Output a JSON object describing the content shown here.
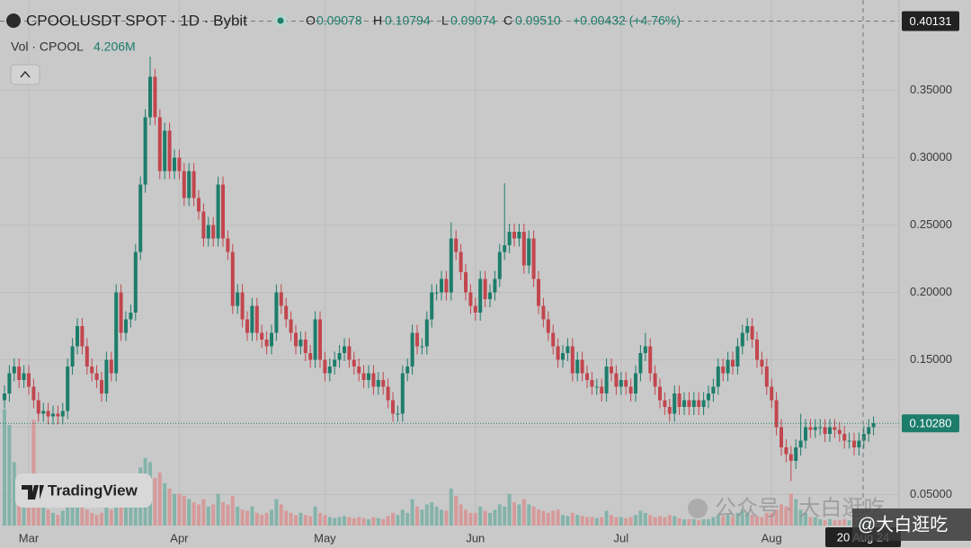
{
  "header": {
    "symbol": "CPOOLUSDT SPOT · 1D · Bybit",
    "ohlc": [
      {
        "label": "O",
        "value": "0.09078"
      },
      {
        "label": "H",
        "value": "0.10794"
      },
      {
        "label": "L",
        "value": "0.09074"
      },
      {
        "label": "C",
        "value": "0.09510"
      }
    ],
    "change": "+0.00432 (+4.76%)"
  },
  "watermarks": {
    "logo": "TradingView",
    "wechat": "公众号 · 大白逛吃",
    "handle": "@大白逛吃"
  },
  "chart_data": {
    "type": "candlestick",
    "categories": [
      null,
      null,
      null,
      null,
      null,
      "Mar",
      null,
      null,
      null,
      null,
      null,
      null,
      null,
      null,
      null,
      null,
      null,
      null,
      null,
      null,
      null,
      null,
      null,
      null,
      null,
      null,
      null,
      null,
      null,
      null,
      null,
      null,
      null,
      null,
      null,
      null,
      "Apr",
      null,
      null,
      null,
      null,
      null,
      null,
      null,
      null,
      null,
      null,
      null,
      null,
      null,
      null,
      null,
      null,
      null,
      null,
      null,
      null,
      null,
      null,
      null,
      null,
      null,
      null,
      null,
      null,
      null,
      "May",
      null,
      null,
      null,
      null,
      null,
      null,
      null,
      null,
      null,
      null,
      null,
      null,
      null,
      null,
      null,
      null,
      null,
      null,
      null,
      null,
      null,
      null,
      null,
      null,
      null,
      null,
      null,
      null,
      null,
      null,
      "Jun",
      null,
      null,
      null,
      null,
      null,
      null,
      null,
      null,
      null,
      null,
      null,
      null,
      null,
      null,
      null,
      null,
      null,
      null,
      null,
      null,
      null,
      null,
      null,
      null,
      null,
      null,
      null,
      null,
      null,
      "Jul",
      null,
      null,
      null,
      null,
      null,
      null,
      null,
      null,
      null,
      null,
      null,
      null,
      null,
      null,
      null,
      null,
      null,
      null,
      null,
      null,
      null,
      null,
      null,
      null,
      null,
      null,
      null,
      null,
      null,
      null,
      "Aug",
      null,
      null,
      null,
      null,
      null,
      null,
      null,
      null,
      null,
      null,
      null,
      null,
      null,
      null,
      null,
      null,
      null,
      null,
      null,
      null,
      null
    ],
    "open": [
      0.12,
      0.125,
      0.14,
      0.145,
      0.135,
      0.14,
      0.13,
      0.12,
      0.11,
      0.112,
      0.108,
      0.11,
      0.108,
      0.112,
      0.145,
      0.16,
      0.175,
      0.16,
      0.145,
      0.14,
      0.135,
      0.125,
      0.15,
      0.14,
      0.2,
      0.17,
      0.18,
      0.185,
      0.23,
      0.28,
      0.33,
      0.36,
      0.33,
      0.29,
      0.32,
      0.29,
      0.3,
      0.29,
      0.27,
      0.29,
      0.27,
      0.26,
      0.24,
      0.25,
      0.24,
      0.28,
      0.24,
      0.23,
      0.19,
      0.2,
      0.18,
      0.17,
      0.19,
      0.17,
      0.165,
      0.16,
      0.17,
      0.2,
      0.19,
      0.18,
      0.17,
      0.16,
      0.165,
      0.155,
      0.15,
      0.18,
      0.15,
      0.14,
      0.145,
      0.15,
      0.155,
      0.16,
      0.15,
      0.145,
      0.14,
      0.135,
      0.14,
      0.13,
      0.135,
      0.13,
      0.12,
      0.11,
      0.11,
      0.14,
      0.145,
      0.17,
      0.16,
      0.16,
      0.18,
      0.2,
      0.2,
      0.21,
      0.2,
      0.24,
      0.23,
      0.215,
      0.2,
      0.19,
      0.185,
      0.21,
      0.195,
      0.2,
      0.21,
      0.23,
      0.235,
      0.245,
      0.24,
      0.245,
      0.22,
      0.24,
      0.21,
      0.19,
      0.18,
      0.17,
      0.16,
      0.15,
      0.155,
      0.16,
      0.14,
      0.15,
      0.14,
      0.135,
      0.13,
      0.13,
      0.125,
      0.145,
      0.14,
      0.13,
      0.135,
      0.13,
      0.125,
      0.14,
      0.155,
      0.16,
      0.14,
      0.13,
      0.12,
      0.115,
      0.11,
      0.125,
      0.115,
      0.12,
      0.115,
      0.12,
      0.115,
      0.12,
      0.125,
      0.13,
      0.145,
      0.14,
      0.15,
      0.145,
      0.16,
      0.17,
      0.175,
      0.165,
      0.15,
      0.145,
      0.13,
      0.12,
      0.1,
      0.085,
      0.08,
      0.075,
      0.085,
      0.09,
      0.1,
      0.098,
      0.1,
      0.1,
      0.095,
      0.1,
      0.098,
      0.095,
      0.09,
      0.09,
      0.085,
      0.09,
      0.095,
      0.1
    ],
    "high": [
      0.131,
      0.146,
      0.151,
      0.151,
      0.146,
      0.146,
      0.136,
      0.126,
      0.118,
      0.118,
      0.116,
      0.116,
      0.118,
      0.151,
      0.166,
      0.181,
      0.181,
      0.166,
      0.151,
      0.146,
      0.141,
      0.156,
      0.156,
      0.206,
      0.206,
      0.186,
      0.191,
      0.236,
      0.286,
      0.336,
      0.375,
      0.366,
      0.336,
      0.326,
      0.326,
      0.306,
      0.306,
      0.296,
      0.296,
      0.296,
      0.276,
      0.266,
      0.256,
      0.256,
      0.286,
      0.286,
      0.246,
      0.236,
      0.206,
      0.206,
      0.186,
      0.196,
      0.196,
      0.176,
      0.171,
      0.176,
      0.206,
      0.206,
      0.196,
      0.186,
      0.176,
      0.171,
      0.171,
      0.161,
      0.186,
      0.186,
      0.156,
      0.151,
      0.156,
      0.161,
      0.166,
      0.166,
      0.156,
      0.151,
      0.146,
      0.146,
      0.146,
      0.141,
      0.141,
      0.136,
      0.126,
      0.116,
      0.146,
      0.151,
      0.176,
      0.176,
      0.166,
      0.186,
      0.206,
      0.206,
      0.216,
      0.216,
      0.252,
      0.246,
      0.236,
      0.221,
      0.206,
      0.196,
      0.216,
      0.216,
      0.206,
      0.216,
      0.236,
      0.281,
      0.251,
      0.251,
      0.251,
      0.251,
      0.246,
      0.246,
      0.216,
      0.196,
      0.186,
      0.176,
      0.166,
      0.161,
      0.166,
      0.166,
      0.156,
      0.156,
      0.146,
      0.141,
      0.136,
      0.136,
      0.151,
      0.151,
      0.146,
      0.141,
      0.141,
      0.136,
      0.146,
      0.161,
      0.17,
      0.166,
      0.146,
      0.136,
      0.126,
      0.121,
      0.131,
      0.131,
      0.126,
      0.126,
      0.126,
      0.126,
      0.126,
      0.131,
      0.136,
      0.151,
      0.151,
      0.156,
      0.156,
      0.166,
      0.176,
      0.181,
      0.181,
      0.171,
      0.156,
      0.151,
      0.136,
      0.126,
      0.106,
      0.091,
      0.086,
      0.091,
      0.11,
      0.106,
      0.106,
      0.106,
      0.106,
      0.106,
      0.106,
      0.106,
      0.104,
      0.101,
      0.096,
      0.096,
      0.096,
      0.101,
      0.106,
      0.108
    ],
    "low": [
      0.114,
      0.119,
      0.134,
      0.129,
      0.129,
      0.124,
      0.114,
      0.104,
      0.104,
      0.102,
      0.102,
      0.102,
      0.102,
      0.106,
      0.139,
      0.154,
      0.154,
      0.139,
      0.134,
      0.129,
      0.119,
      0.119,
      0.134,
      0.134,
      0.164,
      0.164,
      0.174,
      0.179,
      0.224,
      0.274,
      0.324,
      0.324,
      0.284,
      0.284,
      0.284,
      0.284,
      0.284,
      0.264,
      0.264,
      0.264,
      0.254,
      0.234,
      0.234,
      0.234,
      0.234,
      0.234,
      0.224,
      0.184,
      0.184,
      0.174,
      0.164,
      0.164,
      0.164,
      0.159,
      0.154,
      0.154,
      0.164,
      0.184,
      0.174,
      0.164,
      0.154,
      0.154,
      0.149,
      0.144,
      0.144,
      0.144,
      0.134,
      0.134,
      0.139,
      0.144,
      0.149,
      0.144,
      0.139,
      0.134,
      0.129,
      0.129,
      0.124,
      0.124,
      0.124,
      0.114,
      0.104,
      0.104,
      0.104,
      0.134,
      0.139,
      0.154,
      0.154,
      0.154,
      0.174,
      0.194,
      0.194,
      0.194,
      0.194,
      0.224,
      0.209,
      0.194,
      0.184,
      0.179,
      0.179,
      0.189,
      0.189,
      0.194,
      0.204,
      0.224,
      0.229,
      0.234,
      0.234,
      0.214,
      0.214,
      0.204,
      0.184,
      0.174,
      0.164,
      0.154,
      0.144,
      0.144,
      0.149,
      0.134,
      0.134,
      0.134,
      0.129,
      0.124,
      0.124,
      0.119,
      0.119,
      0.134,
      0.124,
      0.124,
      0.124,
      0.119,
      0.119,
      0.134,
      0.149,
      0.134,
      0.124,
      0.114,
      0.109,
      0.104,
      0.104,
      0.109,
      0.109,
      0.109,
      0.109,
      0.109,
      0.109,
      0.114,
      0.119,
      0.124,
      0.134,
      0.134,
      0.139,
      0.139,
      0.154,
      0.164,
      0.159,
      0.144,
      0.139,
      0.124,
      0.114,
      0.094,
      0.079,
      0.074,
      0.06,
      0.069,
      0.079,
      0.084,
      0.092,
      0.092,
      0.094,
      0.089,
      0.089,
      0.092,
      0.089,
      0.084,
      0.084,
      0.079,
      0.079,
      0.084,
      0.089,
      0.094
    ],
    "close": [
      0.125,
      0.14,
      0.145,
      0.135,
      0.14,
      0.13,
      0.12,
      0.11,
      0.112,
      0.108,
      0.11,
      0.108,
      0.112,
      0.145,
      0.16,
      0.175,
      0.16,
      0.145,
      0.14,
      0.135,
      0.125,
      0.15,
      0.14,
      0.2,
      0.17,
      0.18,
      0.185,
      0.23,
      0.28,
      0.33,
      0.36,
      0.33,
      0.29,
      0.32,
      0.29,
      0.3,
      0.29,
      0.27,
      0.29,
      0.27,
      0.26,
      0.24,
      0.25,
      0.24,
      0.28,
      0.24,
      0.23,
      0.19,
      0.2,
      0.18,
      0.17,
      0.19,
      0.17,
      0.165,
      0.16,
      0.17,
      0.2,
      0.19,
      0.18,
      0.17,
      0.16,
      0.165,
      0.155,
      0.15,
      0.18,
      0.15,
      0.14,
      0.145,
      0.15,
      0.155,
      0.16,
      0.15,
      0.145,
      0.14,
      0.135,
      0.14,
      0.13,
      0.135,
      0.13,
      0.12,
      0.11,
      0.11,
      0.14,
      0.145,
      0.17,
      0.16,
      0.16,
      0.18,
      0.2,
      0.2,
      0.21,
      0.2,
      0.24,
      0.23,
      0.215,
      0.2,
      0.19,
      0.185,
      0.21,
      0.195,
      0.2,
      0.21,
      0.23,
      0.235,
      0.245,
      0.24,
      0.245,
      0.22,
      0.24,
      0.21,
      0.19,
      0.18,
      0.17,
      0.16,
      0.15,
      0.155,
      0.16,
      0.14,
      0.15,
      0.14,
      0.135,
      0.13,
      0.13,
      0.125,
      0.145,
      0.14,
      0.13,
      0.135,
      0.13,
      0.125,
      0.14,
      0.155,
      0.16,
      0.14,
      0.13,
      0.12,
      0.115,
      0.11,
      0.125,
      0.115,
      0.12,
      0.115,
      0.12,
      0.115,
      0.12,
      0.125,
      0.13,
      0.145,
      0.14,
      0.15,
      0.145,
      0.16,
      0.17,
      0.175,
      0.165,
      0.15,
      0.145,
      0.13,
      0.12,
      0.1,
      0.085,
      0.08,
      0.075,
      0.085,
      0.09,
      0.1,
      0.098,
      0.1,
      0.1,
      0.095,
      0.1,
      0.098,
      0.095,
      0.09,
      0.09,
      0.085,
      0.09,
      0.095,
      0.1,
      0.103
    ],
    "volume": {
      "name": "Vol · CPOOL",
      "axis": "y2",
      "value_label": "4.206M",
      "values": [
        110,
        95,
        60,
        45,
        40,
        30,
        100,
        25,
        18,
        15,
        12,
        10,
        14,
        30,
        28,
        25,
        20,
        15,
        12,
        10,
        12,
        20,
        15,
        35,
        25,
        20,
        25,
        45,
        55,
        64,
        60,
        45,
        50,
        40,
        35,
        30,
        30,
        28,
        25,
        22,
        20,
        25,
        18,
        20,
        30,
        22,
        20,
        28,
        18,
        15,
        14,
        18,
        12,
        10,
        12,
        15,
        25,
        20,
        14,
        12,
        10,
        12,
        10,
        9,
        18,
        12,
        10,
        8,
        7,
        8,
        9,
        8,
        7,
        8,
        7,
        6,
        8,
        7,
        6,
        9,
        12,
        10,
        15,
        12,
        25,
        18,
        15,
        20,
        22,
        18,
        15,
        14,
        35,
        28,
        20,
        15,
        12,
        12,
        18,
        14,
        12,
        15,
        20,
        18,
        30,
        22,
        20,
        25,
        20,
        18,
        15,
        14,
        12,
        14,
        15,
        10,
        9,
        12,
        10,
        9,
        8,
        8,
        7,
        8,
        14,
        10,
        8,
        8,
        7,
        8,
        10,
        14,
        12,
        10,
        8,
        9,
        8,
        10,
        9,
        7,
        6,
        6,
        6,
        5,
        6,
        6,
        8,
        10,
        9,
        10,
        8,
        12,
        14,
        12,
        10,
        9,
        8,
        12,
        12,
        15,
        20,
        18,
        30,
        25,
        15,
        12,
        8,
        8,
        6,
        5,
        6,
        5,
        5,
        6,
        5,
        6,
        5,
        6,
        6,
        4.206
      ]
    },
    "up_color": "#1d7d6b",
    "down_color": "#c2464e",
    "volume_up_color": "#84b3a9",
    "volume_down_color": "#d69a9a",
    "ylim": [
      0.027,
      0.417
    ],
    "y2lim": [
      0,
      497
    ],
    "yticks": [
      {
        "value": 0.05,
        "label": "0.05000"
      },
      {
        "value": 0.1,
        "label": "0.10000"
      },
      {
        "value": 0.15,
        "label": "0.15000"
      },
      {
        "value": 0.2,
        "label": "0.20000"
      },
      {
        "value": 0.25,
        "label": "0.25000"
      },
      {
        "value": 0.3,
        "label": "0.30000"
      },
      {
        "value": 0.35,
        "label": "0.35000"
      }
    ],
    "grid": true,
    "last_price": {
      "value": 0.1028,
      "label": "0.10280"
    },
    "crosshair": {
      "price": 0.40131,
      "date": "20 Aug 24"
    }
  }
}
